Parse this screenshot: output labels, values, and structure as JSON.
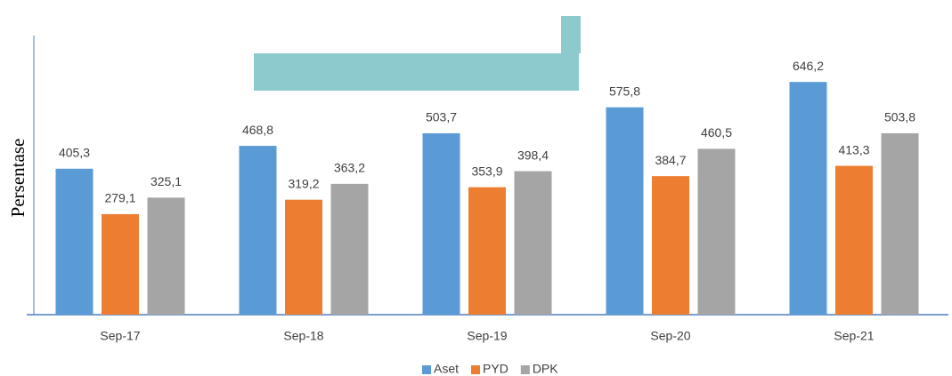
{
  "chart_data": {
    "type": "bar",
    "y_label": "Persentase",
    "categories": [
      "Sep-17",
      "Sep-18",
      "Sep-19",
      "Sep-20",
      "Sep-21"
    ],
    "series": [
      {
        "name": "Aset",
        "color": "#5b9bd5",
        "values": [
          405.3,
          468.8,
          503.7,
          575.8,
          646.2
        ],
        "value_labels": [
          "405,3",
          "468,8",
          "503,7",
          "575,8",
          "646,2"
        ]
      },
      {
        "name": "PYD",
        "color": "#ed7d31",
        "values": [
          279.1,
          319.2,
          353.9,
          384.7,
          413.3
        ],
        "value_labels": [
          "279,1",
          "319,2",
          "353,9",
          "384,7",
          "413,3"
        ]
      },
      {
        "name": "DPK",
        "color": "#a5a5a5",
        "values": [
          325.1,
          363.2,
          398.4,
          460.5,
          503.8
        ],
        "value_labels": [
          "325,1",
          "363,2",
          "398,4",
          "460,5",
          "503,8"
        ]
      }
    ],
    "ylim": [
      0,
      780
    ],
    "legend": "bottom"
  }
}
